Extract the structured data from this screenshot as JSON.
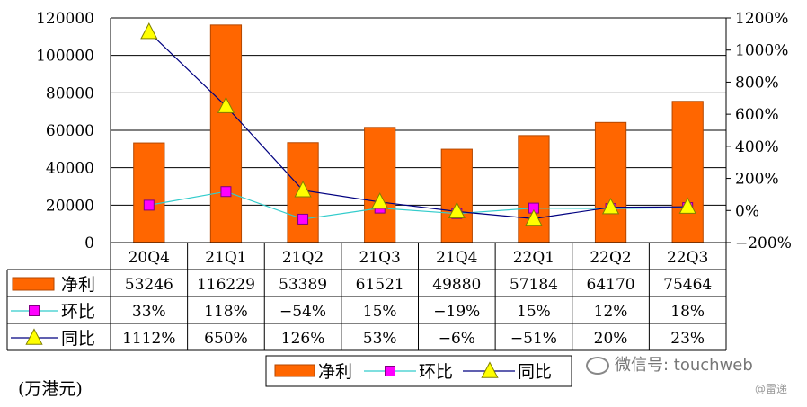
{
  "chart_data": {
    "type": "bar",
    "categories": [
      "20Q4",
      "21Q1",
      "21Q2",
      "21Q3",
      "21Q4",
      "22Q1",
      "22Q2",
      "22Q3"
    ],
    "series": [
      {
        "name": "净利",
        "kind": "bar",
        "axis": "left",
        "values": [
          53246,
          116229,
          53389,
          61521,
          49880,
          57184,
          64170,
          75464
        ],
        "labels": [
          "53246",
          "116229",
          "53389",
          "61521",
          "49880",
          "57184",
          "64170",
          "75464"
        ]
      },
      {
        "name": "环比",
        "kind": "line",
        "axis": "right",
        "marker": "square",
        "values": [
          33,
          118,
          -54,
          15,
          -19,
          15,
          12,
          18
        ],
        "labels": [
          "33%",
          "118%",
          "−54%",
          "15%",
          "−19%",
          "15%",
          "12%",
          "18%"
        ]
      },
      {
        "name": "同比",
        "kind": "line",
        "axis": "right",
        "marker": "triangle",
        "values": [
          1112,
          650,
          126,
          53,
          -6,
          -51,
          20,
          23
        ],
        "labels": [
          "1112%",
          "650%",
          "126%",
          "53%",
          "−6%",
          "−51%",
          "20%",
          "23%"
        ]
      }
    ],
    "left_axis": {
      "min": 0,
      "max": 120000,
      "step": 20000,
      "ticks": [
        "0",
        "20000",
        "40000",
        "60000",
        "80000",
        "100000",
        "120000"
      ]
    },
    "right_axis": {
      "min": -200,
      "max": 1200,
      "step": 200,
      "ticks": [
        "−200%",
        "0%",
        "200%",
        "400%",
        "600%",
        "800%",
        "1000%",
        "1200%"
      ]
    },
    "unit_label": "(万港元)",
    "legend_position": "bottom",
    "grid": true
  },
  "colors": {
    "bar": "#FF6600",
    "bar_edge": "#B34700",
    "mom_line": "#33CCCC",
    "mom_marker": "#FF00FF",
    "yoy_line": "#000080",
    "yoy_marker": "#FFFF00"
  },
  "watermark": {
    "text": "微信号: touchweb",
    "sub": "@雷递"
  }
}
